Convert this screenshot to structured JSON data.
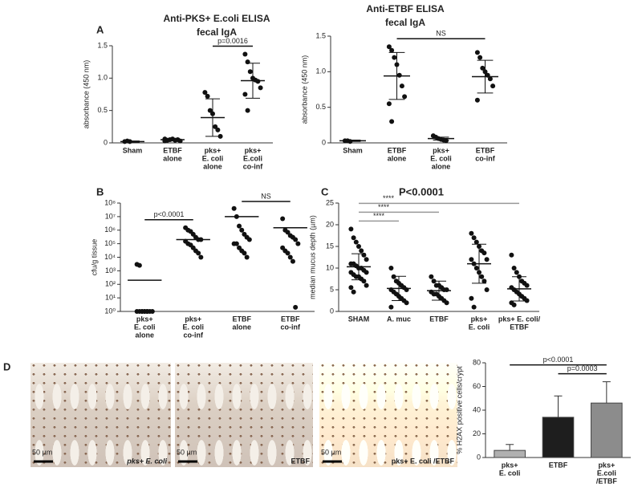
{
  "panels": [
    "A",
    "B",
    "C",
    "D"
  ],
  "chart_data": [
    {
      "type": "dotplot",
      "title": [
        "Anti-PKS+ E.coli ELISA",
        "fecal IgA"
      ],
      "ylabel": "absorbance (450 nm)",
      "categories": [
        [
          "Sham"
        ],
        [
          "ETBF",
          "alone"
        ],
        [
          "pks+",
          "E. coli",
          "alone"
        ],
        [
          "pks+",
          "E.coli",
          "co-inf"
        ]
      ],
      "points": [
        [
          0.02,
          0.03,
          0.02
        ],
        [
          0.03,
          0.04,
          0.05,
          0.06,
          0.04,
          0.05,
          0.03,
          0.06
        ],
        [
          0.78,
          0.72,
          0.5,
          0.45,
          0.25,
          0.2,
          0.1
        ],
        [
          1.37,
          1.25,
          1.1,
          1.0,
          0.97,
          0.95,
          0.85,
          0.75,
          0.5
        ]
      ],
      "means": [
        0.02,
        0.05,
        0.39,
        0.96
      ],
      "sd": [
        0.01,
        0.02,
        0.29,
        0.27
      ],
      "ylim": [
        0,
        1.5
      ],
      "yticks": [
        0,
        0.5,
        {
          "value": 1,
          "label": "1.0"
        },
        1.5
      ],
      "annotations": [
        {
          "text": "p=0.0016",
          "from": 2,
          "to": 3
        }
      ]
    },
    {
      "type": "dotplot",
      "title": [
        "Anti-ETBF ELISA",
        "fecal IgA"
      ],
      "ylabel": "absorbance (450 nm)",
      "categories": [
        [
          "Sham"
        ],
        [
          "ETBF",
          "alone"
        ],
        [
          "pks+",
          "E. coli",
          "alone"
        ],
        [
          "ETBF",
          "co-inf"
        ]
      ],
      "points": [
        [
          0.03,
          0.03,
          0.02
        ],
        [
          1.35,
          1.3,
          1.2,
          1.1,
          0.95,
          0.8,
          0.65,
          0.55,
          0.3
        ],
        [
          0.1,
          0.08,
          0.06,
          0.05,
          0.04,
          0.03
        ],
        [
          1.27,
          1.2,
          1.05,
          1.0,
          0.95,
          0.9,
          0.8,
          0.6
        ]
      ],
      "means": [
        0.03,
        0.94,
        0.06,
        0.93
      ],
      "sd": [
        0.01,
        0.33,
        0.02,
        0.23
      ],
      "ylim": [
        0,
        1.5
      ],
      "yticks": [
        0,
        0.5,
        {
          "value": 1,
          "label": "1.0"
        },
        1.5
      ],
      "annotations": [
        {
          "text": "NS",
          "from": 1,
          "to": 3
        }
      ]
    },
    {
      "type": "dotplot",
      "ylabel": "cfu/g tissue",
      "log_scale": true,
      "categories": [
        [
          "pks+",
          "E. coli",
          "alone"
        ],
        [
          "pks+",
          "E. coli",
          "co-inf"
        ],
        [
          "ETBF",
          "alone"
        ],
        [
          "ETBF",
          "co-inf"
        ]
      ],
      "points": [
        [
          3000,
          2500,
          1,
          1,
          1,
          1,
          1,
          1,
          1,
          1,
          1,
          1
        ],
        [
          1500000,
          1000000,
          800000,
          500000,
          300000,
          200000,
          200000,
          150000,
          100000,
          80000,
          50000,
          30000,
          20000,
          10000
        ],
        [
          40000000,
          10000000,
          2000000,
          1000000,
          500000,
          300000,
          200000,
          100000,
          100000,
          50000,
          30000,
          20000,
          10000
        ],
        [
          7000000,
          1000000,
          700000,
          400000,
          300000,
          200000,
          100000,
          50000,
          30000,
          20000,
          10000,
          5000,
          2
        ]
      ],
      "means": [
        200,
        200000,
        10000000,
        1500000
      ],
      "ylim": [
        1,
        100000000
      ],
      "yticks": [
        {
          "value": 1,
          "label": "10⁰"
        },
        {
          "value": 10,
          "label": "10¹"
        },
        {
          "value": 100,
          "label": "10²"
        },
        {
          "value": 1000,
          "label": "10³"
        },
        {
          "value": 10000,
          "label": "10⁴"
        },
        {
          "value": 100000,
          "label": "10⁵"
        },
        {
          "value": 1000000,
          "label": "10⁶"
        },
        {
          "value": 10000000,
          "label": "10⁷"
        },
        {
          "value": 100000000,
          "label": "10⁸"
        }
      ],
      "annotations": [
        {
          "text": "p<0.0001",
          "from": 0,
          "to": 1
        },
        {
          "text": "NS",
          "from": 2,
          "to": 3
        }
      ]
    },
    {
      "type": "dotplot",
      "title": "P<0.0001",
      "ylabel": "median mucus depth (µm)",
      "categories": [
        [
          "SHAM"
        ],
        [
          "A. muc"
        ],
        [
          "ETBF"
        ],
        [
          "pks+",
          "E. coli"
        ],
        [
          "pks+ E. coli/",
          "ETBF"
        ]
      ],
      "points": [
        [
          19,
          17,
          16,
          15,
          14,
          13,
          12,
          11,
          11,
          10.5,
          10,
          10,
          9.5,
          9,
          9,
          8.5,
          8,
          8,
          7.5,
          7,
          6,
          5.5,
          4.5
        ],
        [
          10,
          8,
          7,
          6.5,
          6,
          5.5,
          5,
          5,
          4.5,
          4,
          3.5,
          3,
          2.5,
          2,
          1
        ],
        [
          8,
          7,
          6,
          6,
          5.5,
          5,
          5,
          4.5,
          4,
          4,
          3.5,
          3,
          2.5,
          2
        ],
        [
          18,
          17,
          16,
          15,
          14,
          13.5,
          12,
          12,
          11,
          10,
          9,
          8,
          7,
          5,
          3,
          1
        ],
        [
          13,
          10,
          9,
          8,
          7,
          6.5,
          6,
          5.5,
          5,
          4.5,
          4,
          3.5,
          3,
          2.5,
          2,
          1.5
        ]
      ],
      "means": [
        10.3,
        5.3,
        4.8,
        11,
        5.2
      ],
      "sd": [
        3,
        2.8,
        2.2,
        4.5,
        2.8
      ],
      "ylim": [
        0,
        25
      ],
      "yticks": [
        0,
        5,
        10,
        15,
        20,
        25
      ],
      "annotations": [
        {
          "text": "****",
          "from": 0,
          "to": 1
        },
        {
          "text": "****",
          "from": 0,
          "to": 2
        },
        {
          "text": "****",
          "from": 0,
          "to": 4
        }
      ]
    },
    {
      "type": "bar",
      "ylabel": "% H2AX positive cells/crypt",
      "categories": [
        [
          "pks+",
          "E. coli"
        ],
        [
          "ETBF"
        ],
        [
          "pks+",
          "E.coli",
          "/ETBF"
        ]
      ],
      "values": [
        6,
        34,
        46
      ],
      "errors": [
        5,
        18,
        18
      ],
      "colors": [
        "#b0b0b0",
        "#1e1e1e",
        "#8c8c8c"
      ],
      "ylim": [
        0,
        80
      ],
      "yticks": [
        0,
        20,
        40,
        60,
        80
      ],
      "annotations": [
        {
          "text": "p=0.0003",
          "from": 1,
          "to": 2
        },
        {
          "text": "p<0.0001",
          "from": 0,
          "to": 2
        }
      ]
    }
  ],
  "micrographs": [
    {
      "scale": "50 µm",
      "label": "pks+ E. coli"
    },
    {
      "scale": "50 µm",
      "label": "ETBF"
    },
    {
      "scale": "50 µm",
      "label": "pks+ E. coli /ETBF"
    }
  ]
}
